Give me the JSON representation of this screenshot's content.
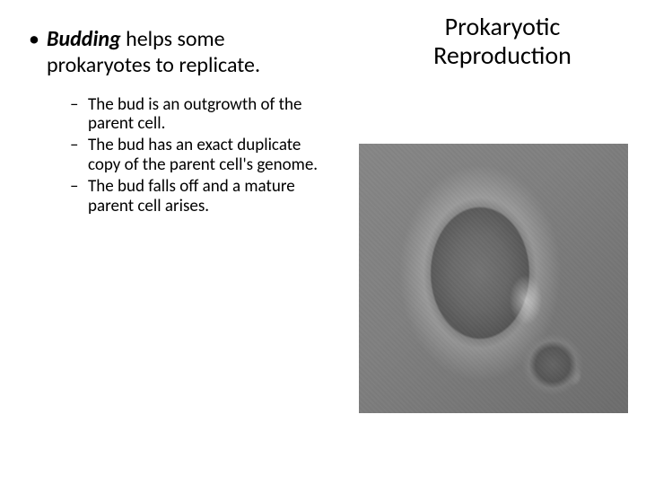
{
  "title": "Prokaryotic Reproduction",
  "main_bullet": {
    "bold_term": "Budding",
    "rest": " helps some prokaryotes to replicate."
  },
  "sub_bullets": [
    "The bud is an outgrowth of the parent cell.",
    "The bud has an exact duplicate copy of the parent cell's genome.",
    "The bud falls off and a mature parent cell arises."
  ],
  "image": {
    "description": "budding-cell-micrograph",
    "background_gray": "#808080"
  }
}
